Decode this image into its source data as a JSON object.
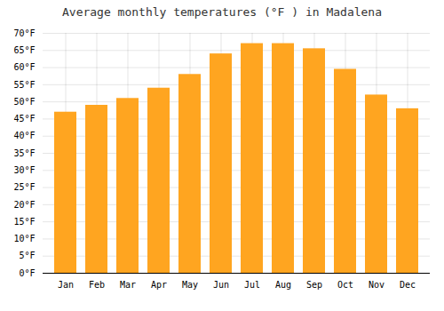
{
  "chart_data": {
    "type": "bar",
    "title": "Average monthly temperatures (°F ) in Madalena",
    "categories": [
      "Jan",
      "Feb",
      "Mar",
      "Apr",
      "May",
      "Jun",
      "Jul",
      "Aug",
      "Sep",
      "Oct",
      "Nov",
      "Dec"
    ],
    "values": [
      47,
      49,
      51,
      54,
      58,
      64,
      67,
      67,
      65.5,
      59.5,
      52,
      48
    ],
    "color": "#FFA520",
    "ylim": [
      0,
      70
    ],
    "yticks": [
      {
        "value": 0,
        "label": "0°F"
      },
      {
        "value": 5,
        "label": "5°F"
      },
      {
        "value": 10,
        "label": "10°F"
      },
      {
        "value": 15,
        "label": "15°F"
      },
      {
        "value": 20,
        "label": "20°F"
      },
      {
        "value": 25,
        "label": "25°F"
      },
      {
        "value": 30,
        "label": "30°F"
      },
      {
        "value": 35,
        "label": "35°F"
      },
      {
        "value": 40,
        "label": "40°F"
      },
      {
        "value": 45,
        "label": "45°F"
      },
      {
        "value": 50,
        "label": "50°F"
      },
      {
        "value": 55,
        "label": "55°F"
      },
      {
        "value": 60,
        "label": "60°F"
      },
      {
        "value": 65,
        "label": "65°F"
      },
      {
        "value": 70,
        "label": "70°F"
      }
    ],
    "grid": true
  }
}
